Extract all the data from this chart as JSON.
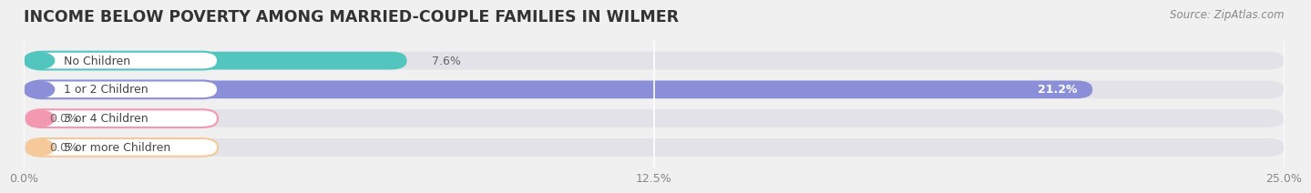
{
  "title": "INCOME BELOW POVERTY AMONG MARRIED-COUPLE FAMILIES IN WILMER",
  "source": "Source: ZipAtlas.com",
  "categories": [
    "No Children",
    "1 or 2 Children",
    "3 or 4 Children",
    "5 or more Children"
  ],
  "values": [
    7.6,
    21.2,
    0.0,
    0.0
  ],
  "bar_colors": [
    "#52c5be",
    "#8b8fd8",
    "#f298b0",
    "#f5c99a"
  ],
  "xlim": [
    0,
    25.0
  ],
  "xticks": [
    0.0,
    12.5,
    25.0
  ],
  "xticklabels": [
    "0.0%",
    "12.5%",
    "25.0%"
  ],
  "bar_height": 0.62,
  "background_color": "#f0f0f0",
  "bar_bg_color": "#e2e2e8",
  "title_fontsize": 12.5,
  "label_fontsize": 9,
  "value_fontsize": 9,
  "tick_fontsize": 9,
  "source_fontsize": 8.5,
  "value_inside_threshold": 15.0
}
